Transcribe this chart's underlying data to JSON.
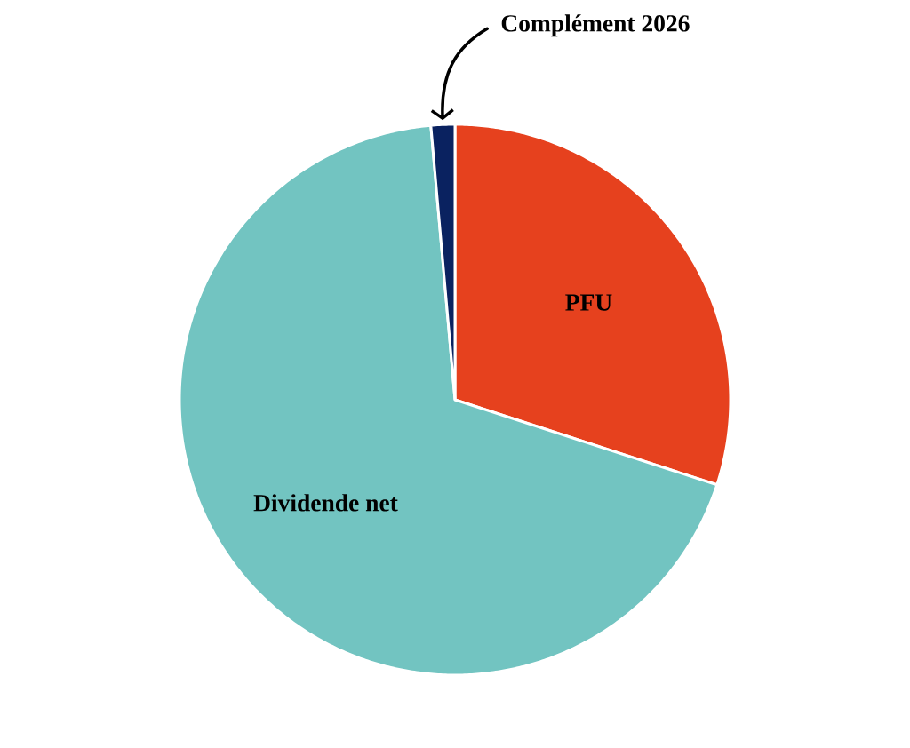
{
  "chart_data": {
    "type": "pie",
    "categories": [
      "PFU",
      "Dividende net",
      "Complément 2026"
    ],
    "values": [
      30,
      68.6,
      1.4
    ],
    "colors": [
      "#e6411e",
      "#72c4c1",
      "#0a2260"
    ]
  }
}
